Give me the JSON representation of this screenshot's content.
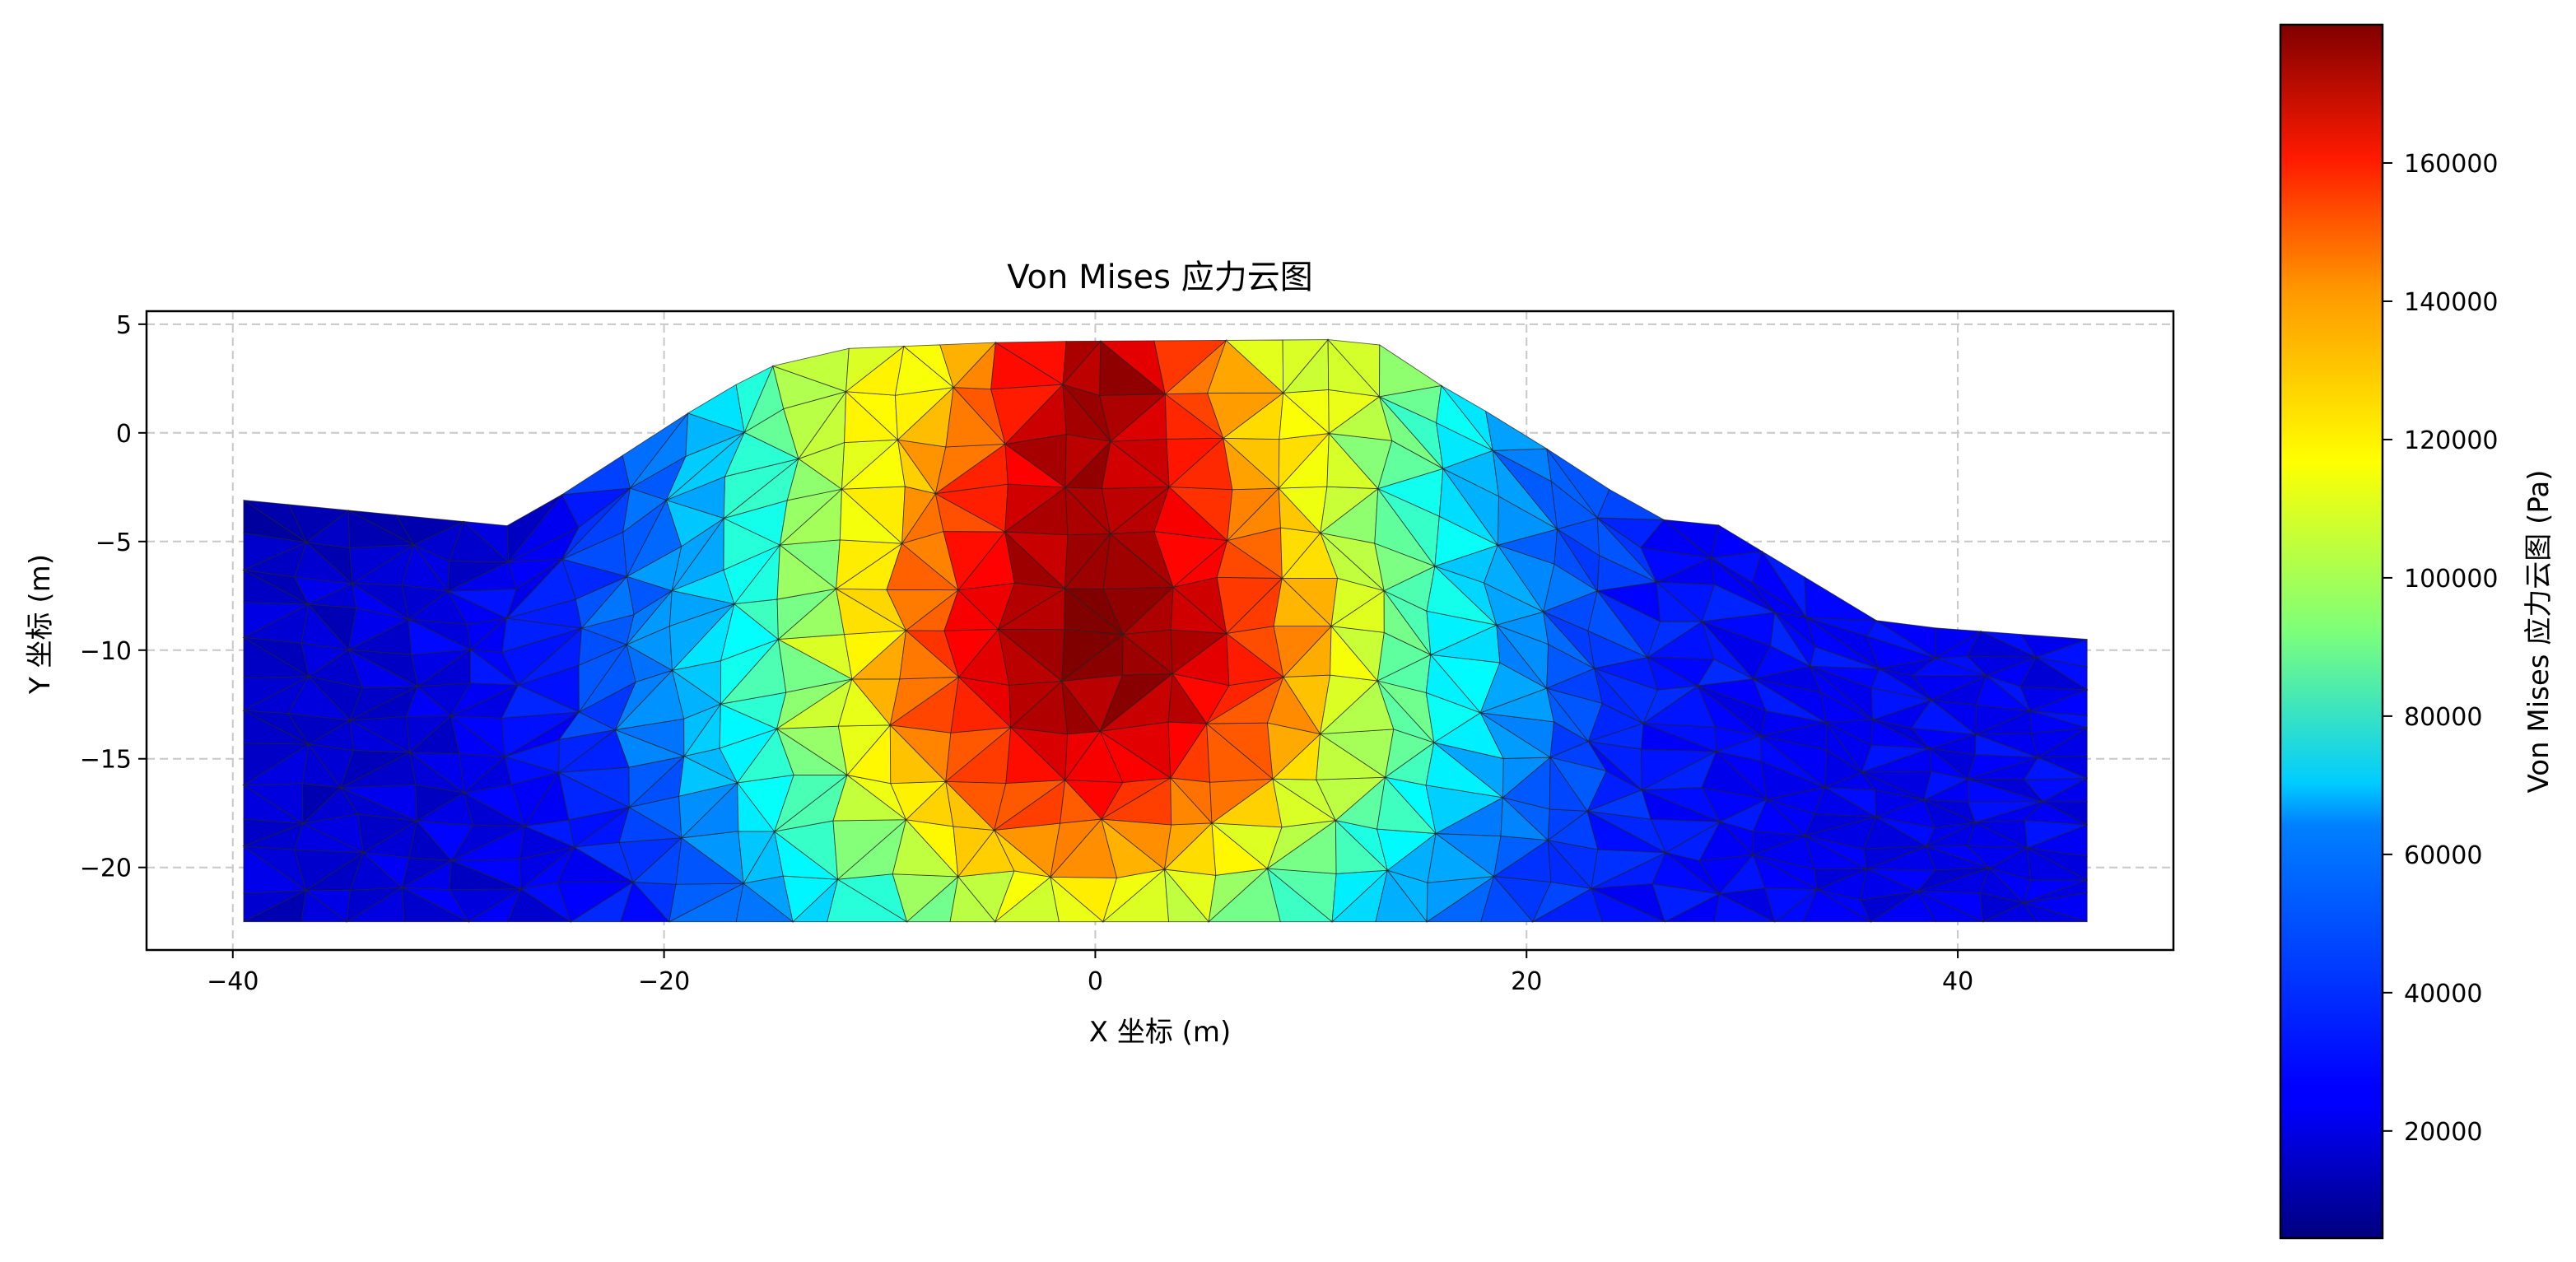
{
  "chart_data": {
    "type": "heatmap",
    "title": "Von Mises 应力云图",
    "xlabel": "X 坐标 (m)",
    "ylabel": "Y 坐标 (m)",
    "xlim": [
      -44,
      50
    ],
    "ylim": [
      -23.8,
      5.6
    ],
    "xticks": [
      -40,
      -20,
      0,
      20,
      40
    ],
    "yticks": [
      5,
      0,
      -5,
      -10,
      -15,
      -20
    ],
    "grid": true,
    "colormap": "jet",
    "colorbar": {
      "label": "Von Mises 应力云图 (Pa)",
      "range": [
        4500,
        180000
      ],
      "ticks": [
        20000,
        40000,
        60000,
        80000,
        100000,
        120000,
        140000,
        160000
      ]
    },
    "domain_outline": [
      [
        -39.5,
        -3.1
      ],
      [
        -27,
        -4.3
      ],
      [
        -17.5,
        1.8
      ],
      [
        -13.5,
        3.8
      ],
      [
        -3.5,
        4.2
      ],
      [
        12.8,
        4.3
      ],
      [
        16,
        2.2
      ],
      [
        19.5,
        0.2
      ],
      [
        26,
        -4
      ],
      [
        28.5,
        -4
      ],
      [
        36.5,
        -8.8
      ],
      [
        46,
        -9.5
      ],
      [
        46,
        -22.5
      ],
      [
        -39.5,
        -22.5
      ]
    ],
    "stress_hotspots": [
      {
        "x": 0,
        "y": -11,
        "value": 160000
      },
      {
        "x": 0,
        "y": 4,
        "value": 175000
      }
    ]
  }
}
